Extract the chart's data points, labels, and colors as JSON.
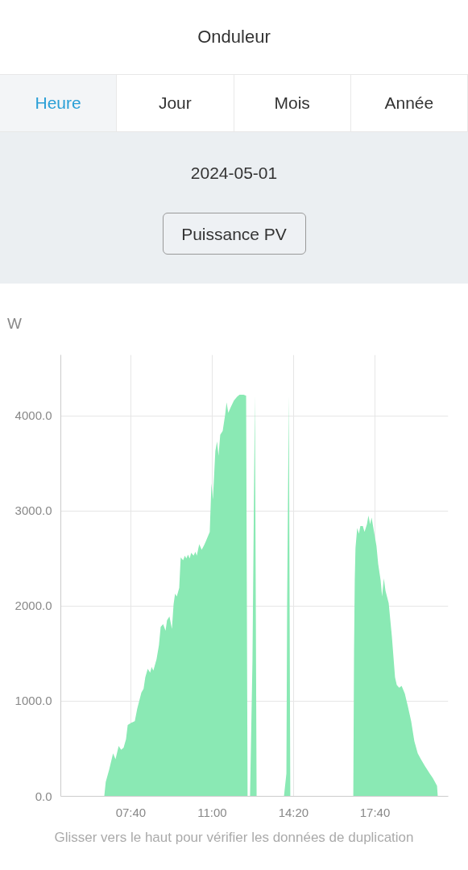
{
  "chart_data": {
    "type": "area",
    "title": "Onduleur",
    "ylabel": "W",
    "annotations": [
      "Heure",
      "Jour",
      "Mois",
      "Année",
      "2024-05-01",
      "Puissance PV",
      "Glisser vers le haut pour vérifier les données de duplication"
    ],
    "xlim": [
      4.8,
      20.67
    ],
    "xticks": [
      {
        "value": 7.667,
        "label": "07:40"
      },
      {
        "value": 11.0,
        "label": "11:00"
      },
      {
        "value": 14.333,
        "label": "14:20"
      },
      {
        "value": 17.667,
        "label": "17:40"
      }
    ],
    "ylim": [
      0,
      4640
    ],
    "yticks": [
      {
        "value": 0,
        "label": "0.0"
      },
      {
        "value": 1000,
        "label": "1000.0"
      },
      {
        "value": 2000,
        "label": "2000.0"
      },
      {
        "value": 3000,
        "label": "3000.0"
      },
      {
        "value": 4000,
        "label": "4000.0"
      }
    ],
    "grid": true,
    "series": [
      {
        "color": "#8ae9b4",
        "x": [
          6.58,
          6.64,
          6.78,
          6.94,
          7.04,
          7.17,
          7.27,
          7.37,
          7.47,
          7.54,
          7.67,
          7.83,
          7.93,
          8.1,
          8.19,
          8.26,
          8.36,
          8.46,
          8.52,
          8.59,
          8.72,
          8.82,
          8.89,
          8.99,
          9.09,
          9.15,
          9.25,
          9.35,
          9.42,
          9.48,
          9.55,
          9.65,
          9.71,
          9.81,
          9.88,
          9.94,
          10.01,
          10.08,
          10.14,
          10.24,
          10.31,
          10.37,
          10.47,
          10.57,
          10.67,
          10.74,
          10.9,
          10.97,
          11.03,
          11.13,
          11.2,
          11.26,
          11.33,
          11.43,
          11.53,
          11.59,
          11.66,
          11.76,
          11.89,
          12.02,
          12.12,
          12.29,
          12.39,
          12.45,
          12.55,
          12.65,
          12.75,
          12.82,
          12.88,
          13.94,
          14.04,
          14.07,
          14.14,
          14.2,
          14.27,
          16.71,
          16.78,
          16.81,
          16.84,
          16.87,
          16.94,
          17.01,
          17.07,
          17.17,
          17.24,
          17.34,
          17.4,
          17.47,
          17.53,
          17.63,
          17.73,
          17.8,
          17.9,
          17.96,
          18.03,
          18.1,
          18.23,
          18.36,
          18.49,
          18.56,
          18.66,
          18.76,
          18.89,
          19.02,
          19.15,
          19.28,
          19.42,
          19.55,
          19.71,
          19.81,
          19.91,
          20.04,
          20.21,
          20.24
        ],
        "values": [
          0,
          150,
          280,
          450,
          390,
          530,
          490,
          510,
          600,
          750,
          770,
          790,
          920,
          1090,
          1130,
          1250,
          1340,
          1300,
          1360,
          1320,
          1440,
          1590,
          1780,
          1810,
          1740,
          1850,
          1890,
          1760,
          2020,
          2130,
          2100,
          2190,
          2510,
          2480,
          2530,
          2500,
          2540,
          2500,
          2560,
          2530,
          2570,
          2530,
          2650,
          2590,
          2640,
          2680,
          2780,
          3290,
          3120,
          3630,
          3730,
          3580,
          3800,
          3840,
          4010,
          4140,
          4030,
          4090,
          4160,
          4200,
          4220,
          4220,
          4210,
          0,
          0,
          1420,
          4220,
          0,
          0,
          0,
          240,
          2020,
          4220,
          0,
          0,
          0,
          0,
          1510,
          2270,
          2610,
          2820,
          2760,
          2840,
          2840,
          2780,
          2860,
          2950,
          2860,
          2930,
          2780,
          2630,
          2440,
          2270,
          2100,
          2290,
          2160,
          2030,
          1680,
          1250,
          1170,
          1140,
          1160,
          1080,
          940,
          790,
          580,
          450,
          390,
          320,
          280,
          240,
          190,
          110,
          0
        ]
      }
    ]
  }
}
